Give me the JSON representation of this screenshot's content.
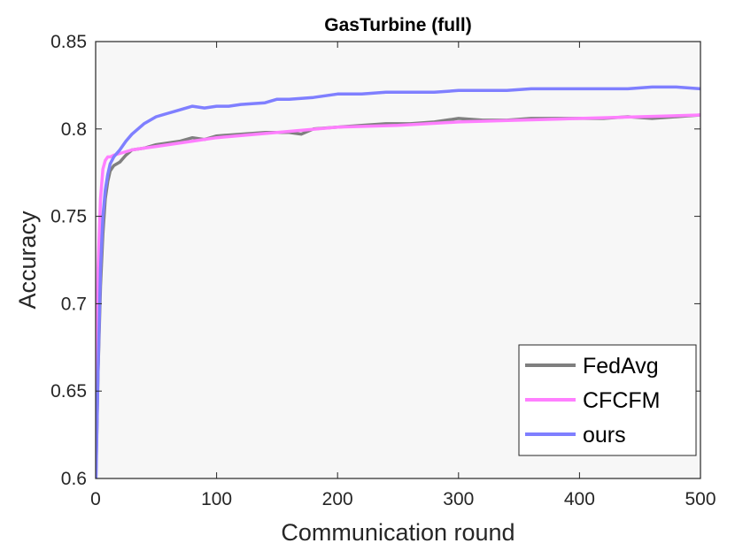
{
  "chart_data": {
    "type": "line",
    "title": "GasTurbine (full)",
    "xlabel": "Communication round",
    "ylabel": "Accuracy",
    "xlim": [
      0,
      500
    ],
    "ylim": [
      0.6,
      0.85
    ],
    "xticks": [
      0,
      100,
      200,
      300,
      400,
      500
    ],
    "yticks": [
      0.6,
      0.65,
      0.7,
      0.75,
      0.8,
      0.85
    ],
    "xtick_labels": [
      "0",
      "100",
      "200",
      "300",
      "400",
      "500"
    ],
    "ytick_labels": [
      "0.6",
      "0.65",
      "0.7",
      "0.75",
      "0.8",
      "0.85"
    ],
    "grid": false,
    "background": "#f7f7f7",
    "legend_position": "bottom-right",
    "series": [
      {
        "name": "FedAvg",
        "color": "#7f7f7f",
        "x": [
          0,
          2,
          4,
          6,
          8,
          10,
          12,
          15,
          20,
          25,
          30,
          40,
          50,
          60,
          70,
          80,
          90,
          100,
          120,
          140,
          160,
          170,
          180,
          200,
          220,
          240,
          260,
          280,
          300,
          320,
          340,
          360,
          380,
          400,
          420,
          440,
          460,
          480,
          500
        ],
        "y": [
          0.595,
          0.66,
          0.71,
          0.74,
          0.76,
          0.77,
          0.776,
          0.779,
          0.781,
          0.785,
          0.788,
          0.789,
          0.791,
          0.792,
          0.793,
          0.795,
          0.794,
          0.796,
          0.797,
          0.798,
          0.798,
          0.797,
          0.8,
          0.801,
          0.802,
          0.803,
          0.803,
          0.804,
          0.806,
          0.805,
          0.805,
          0.806,
          0.806,
          0.806,
          0.806,
          0.807,
          0.806,
          0.807,
          0.808
        ]
      },
      {
        "name": "CFCFM",
        "color": "#ff7fff",
        "x": [
          0,
          2,
          4,
          6,
          8,
          10,
          12,
          15,
          20,
          25,
          30,
          40,
          50,
          60,
          80,
          100,
          150,
          200,
          250,
          300,
          350,
          400,
          450,
          500
        ],
        "y": [
          0.645,
          0.72,
          0.76,
          0.777,
          0.782,
          0.784,
          0.784,
          0.785,
          0.786,
          0.787,
          0.788,
          0.789,
          0.79,
          0.791,
          0.793,
          0.795,
          0.798,
          0.801,
          0.802,
          0.804,
          0.805,
          0.806,
          0.807,
          0.808
        ]
      },
      {
        "name": "ours",
        "color": "#7f7fff",
        "x": [
          0,
          2,
          4,
          6,
          8,
          10,
          12,
          15,
          20,
          25,
          30,
          40,
          50,
          60,
          70,
          80,
          90,
          100,
          110,
          120,
          140,
          150,
          160,
          180,
          200,
          220,
          240,
          260,
          280,
          300,
          320,
          340,
          360,
          380,
          400,
          420,
          440,
          460,
          480,
          500
        ],
        "y": [
          0.59,
          0.66,
          0.72,
          0.75,
          0.765,
          0.774,
          0.78,
          0.784,
          0.788,
          0.793,
          0.797,
          0.803,
          0.807,
          0.809,
          0.811,
          0.813,
          0.812,
          0.813,
          0.813,
          0.814,
          0.815,
          0.817,
          0.817,
          0.818,
          0.82,
          0.82,
          0.821,
          0.821,
          0.821,
          0.822,
          0.822,
          0.822,
          0.823,
          0.823,
          0.823,
          0.823,
          0.823,
          0.824,
          0.824,
          0.823
        ]
      }
    ]
  }
}
